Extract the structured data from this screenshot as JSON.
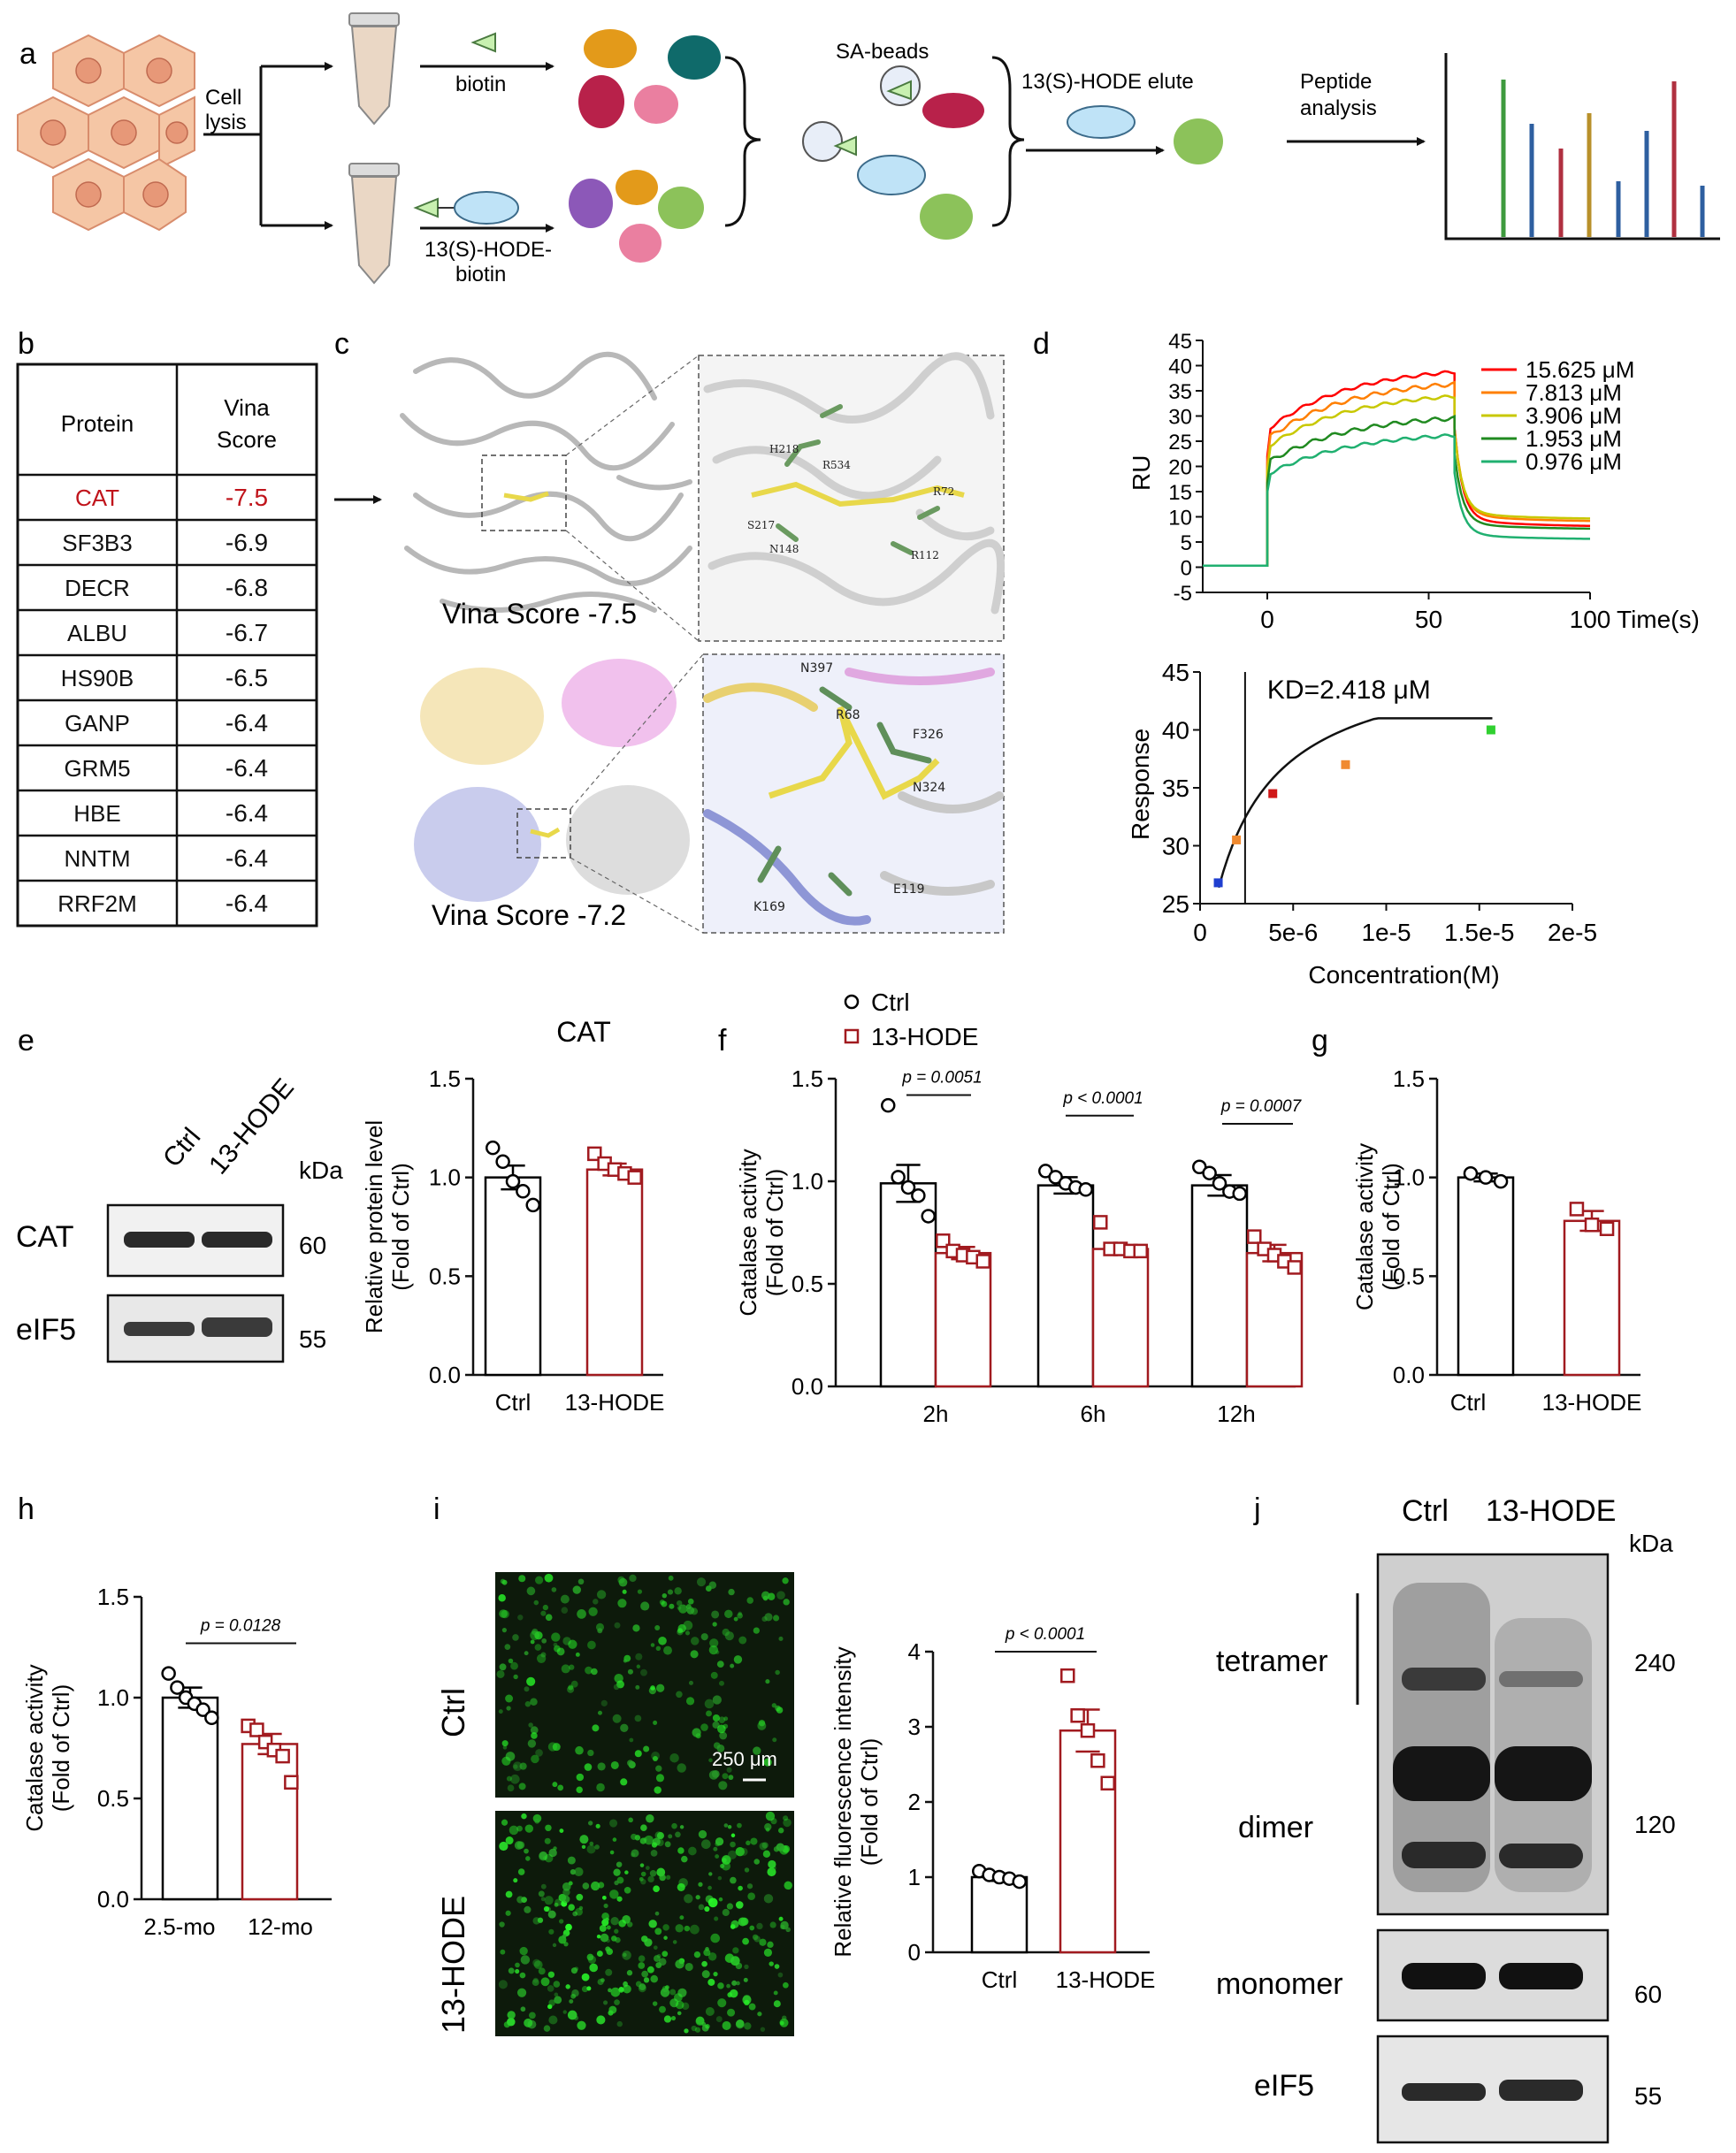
{
  "panels": {
    "a": {
      "label": "a",
      "cell_lysis": "Cell\nlysis",
      "biotin": "biotin",
      "probe": "13(S)-HODE-\nbiotin",
      "sa_beads": "SA-beads",
      "elute": "13(S)-HODE elute",
      "peptide": "Peptide\nanalysis"
    },
    "b": {
      "label": "b",
      "headers": [
        "Protein",
        "Vina\nScore"
      ],
      "rows": [
        [
          "CAT",
          "-7.5"
        ],
        [
          "SF3B3",
          "-6.9"
        ],
        [
          "DECR",
          "-6.8"
        ],
        [
          "ALBU",
          "-6.7"
        ],
        [
          "HS90B",
          "-6.5"
        ],
        [
          "GANP",
          "-6.4"
        ],
        [
          "GRM5",
          "-6.4"
        ],
        [
          "HBE",
          "-6.4"
        ],
        [
          "NNTM",
          "-6.4"
        ],
        [
          "RRF2M",
          "-6.4"
        ]
      ],
      "highlight_color": "#c0141b"
    },
    "c": {
      "label": "c",
      "score1": "Vina Score  -7.5",
      "score2": "Vina Score  -7.2",
      "residues1": [
        "H218",
        "R534",
        "S217",
        "N148",
        "R72",
        "R112"
      ],
      "residues2": [
        "N397",
        "R68",
        "F326",
        "N324",
        "E119",
        "K169"
      ]
    },
    "d": {
      "label": "d",
      "ru_label": "RU",
      "time_label": "Time(s)",
      "legend": [
        "15.625 μM",
        "7.813 μM",
        "3.906 μM",
        "1.953 μM",
        "0.976 μM"
      ],
      "kd": "KD=2.418 μM",
      "response_label": "Response",
      "conc_label": "Concentration(M)"
    },
    "e": {
      "label": "e",
      "blot_lanes": [
        "Ctrl",
        "13-HODE"
      ],
      "kda": "kDa",
      "bands": [
        {
          "name": "CAT",
          "kda": "60"
        },
        {
          "name": "eIF5",
          "kda": "55"
        }
      ],
      "chart_title": "CAT"
    },
    "f": {
      "label": "f",
      "legend": [
        "Ctrl",
        "13-HODE"
      ]
    },
    "g": {
      "label": "g"
    },
    "h": {
      "label": "h"
    },
    "i": {
      "label": "i",
      "rows": [
        "Ctrl",
        "13-HODE"
      ],
      "scale": "250 μm"
    },
    "j": {
      "label": "j",
      "lanes": [
        "Ctrl",
        "13-HODE"
      ],
      "kda": "kDa",
      "bands": [
        {
          "name": "tetramer",
          "kda": "240"
        },
        {
          "name": "dimer",
          "kda": "120"
        },
        {
          "name": "monomer",
          "kda": "60"
        },
        {
          "name": "eIF5",
          "kda": "55"
        }
      ]
    }
  },
  "colors": {
    "ctrl": "#000000",
    "treat": "#a11a1f",
    "sensorgram": [
      "#ff0000",
      "#ff7f00",
      "#c8c800",
      "#208a20",
      "#20b070"
    ]
  },
  "chart_data": [
    {
      "panel": "d-top",
      "type": "line",
      "ylabel": "RU",
      "xlabel": "Time(s)",
      "xlim": [
        -20,
        100
      ],
      "ylim": [
        -5,
        45
      ],
      "xticks": [
        0,
        50,
        100
      ],
      "yticks": [
        -5,
        0,
        5,
        10,
        15,
        20,
        25,
        30,
        35,
        40,
        45
      ],
      "series": [
        {
          "name": "15.625 μM",
          "plateau": 40,
          "dissoc": 8
        },
        {
          "name": "7.813 μM",
          "plateau": 37.5,
          "dissoc": 9
        },
        {
          "name": "3.906 μM",
          "plateau": 35,
          "dissoc": 9.5
        },
        {
          "name": "1.953 μM",
          "plateau": 30.5,
          "dissoc": 7.5
        },
        {
          "name": "0.976 μM",
          "plateau": 27,
          "dissoc": 5.5
        }
      ]
    },
    {
      "panel": "d-bottom",
      "type": "scatter",
      "xlabel": "Concentration(M)",
      "ylabel": "Response",
      "xlim": [
        0,
        2e-05
      ],
      "ylim": [
        25,
        45
      ],
      "xticks": [
        "0",
        "5e-6",
        "1e-5",
        "1.5e-5",
        "2e-5"
      ],
      "yticks": [
        25,
        30,
        35,
        40,
        45
      ],
      "kd": 2.418e-06,
      "points": [
        {
          "x": 9.76e-07,
          "y": 26.8,
          "color": "#1f3fd0"
        },
        {
          "x": 1.953e-06,
          "y": 30.5,
          "color": "#f08a30"
        },
        {
          "x": 3.906e-06,
          "y": 34.5,
          "color": "#d01818"
        },
        {
          "x": 7.813e-06,
          "y": 37.0,
          "color": "#f08a30"
        },
        {
          "x": 1.5625e-05,
          "y": 40.0,
          "color": "#30d030"
        }
      ]
    },
    {
      "panel": "e",
      "type": "bar",
      "title": "CAT",
      "ylabel": "Relative protein level\n(Fold of Ctrl)",
      "ylim": [
        0,
        1.5
      ],
      "yticks": [
        0.0,
        0.5,
        1.0,
        1.5
      ],
      "categories": [
        "Ctrl",
        "13-HODE"
      ],
      "values": [
        1.0,
        1.04
      ],
      "errors": [
        0.06,
        0.03
      ],
      "points": [
        [
          1.15,
          1.08,
          0.98,
          0.93,
          0.86
        ],
        [
          1.12,
          1.07,
          1.04,
          1.02,
          1.0
        ]
      ]
    },
    {
      "panel": "f",
      "type": "bar",
      "ylabel": "Catalase activity\n(Fold of Ctrl)",
      "ylim": [
        0,
        1.5
      ],
      "yticks": [
        0.0,
        0.5,
        1.0,
        1.5
      ],
      "categories": [
        "2h",
        "6h",
        "12h"
      ],
      "series": [
        {
          "name": "Ctrl",
          "values": [
            0.99,
            0.98,
            0.98
          ],
          "errors": [
            0.09,
            0.04,
            0.05
          ],
          "points": [
            [
              1.37,
              1.02,
              0.97,
              0.93,
              0.83
            ],
            [
              1.05,
              1.02,
              0.99,
              0.97,
              0.96
            ],
            [
              1.07,
              1.04,
              0.99,
              0.95,
              0.94
            ]
          ]
        },
        {
          "name": "13-HODE",
          "values": [
            0.65,
            0.67,
            0.65
          ],
          "errors": [
            0.03,
            0.01,
            0.04
          ],
          "points": [
            [
              0.71,
              0.66,
              0.64,
              0.63,
              0.61
            ],
            [
              0.8,
              0.67,
              0.67,
              0.66,
              0.66
            ],
            [
              0.73,
              0.67,
              0.64,
              0.61,
              0.58
            ]
          ]
        }
      ],
      "pvalues": [
        "p = 0.0051",
        "p < 0.0001",
        "p = 0.0007"
      ]
    },
    {
      "panel": "g",
      "type": "bar",
      "ylabel": "Catalase activity\n(Fold of Ctrl)",
      "ylim": [
        0,
        1.5
      ],
      "yticks": [
        0.0,
        0.5,
        1.0,
        1.5
      ],
      "categories": [
        "Ctrl",
        "13-HODE"
      ],
      "values": [
        1.0,
        0.78
      ],
      "errors": [
        0.02,
        0.05
      ],
      "points": [
        [
          1.02,
          1.0,
          0.98
        ],
        [
          0.84,
          0.76,
          0.74
        ]
      ]
    },
    {
      "panel": "h",
      "type": "bar",
      "ylabel": "Catalase activity\n(Fold of Ctrl)",
      "ylim": [
        0,
        1.5
      ],
      "yticks": [
        0.0,
        0.5,
        1.0,
        1.5
      ],
      "categories": [
        "2.5-mo",
        "12-mo"
      ],
      "values": [
        1.0,
        0.77
      ],
      "errors": [
        0.05,
        0.05
      ],
      "points": [
        [
          1.12,
          1.05,
          1.0,
          0.97,
          0.94,
          0.9
        ],
        [
          0.86,
          0.84,
          0.78,
          0.74,
          0.71,
          0.58
        ]
      ],
      "pvalue": "p = 0.0128"
    },
    {
      "panel": "i",
      "type": "bar",
      "ylabel": "Relative fluorescence intensity\n(Fold of Ctrl)",
      "ylim": [
        0,
        4
      ],
      "yticks": [
        0,
        1,
        2,
        3,
        4
      ],
      "categories": [
        "Ctrl",
        "13-HODE"
      ],
      "values": [
        1.0,
        2.95
      ],
      "errors": [
        0.05,
        0.28
      ],
      "points": [
        [
          1.08,
          1.03,
          1.0,
          0.98,
          0.94
        ],
        [
          3.68,
          3.15,
          2.95,
          2.55,
          2.25
        ]
      ],
      "pvalue": "p < 0.0001"
    }
  ]
}
